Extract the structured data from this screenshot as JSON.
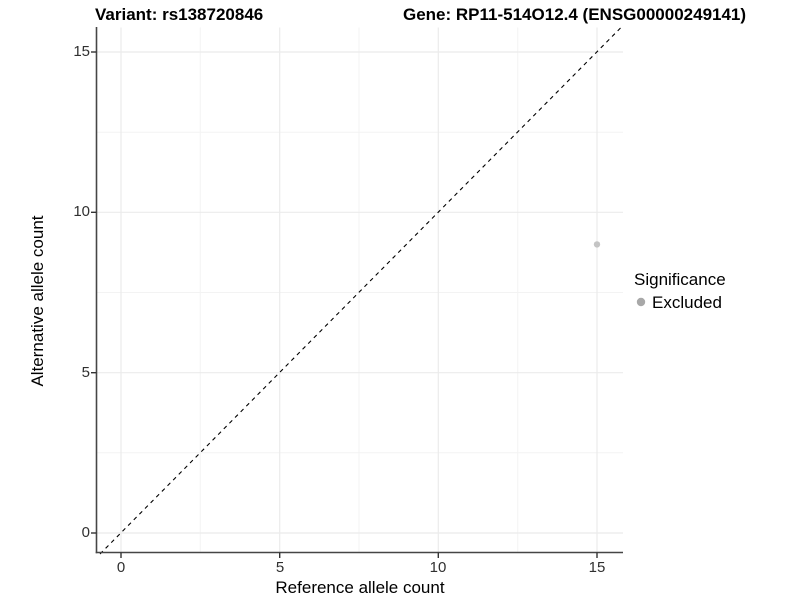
{
  "chart_data": {
    "type": "scatter",
    "title_left": "Variant: rs138720846",
    "title_right": "Gene: RP11-514O12.4 (ENSG00000249141)",
    "xlabel": "Reference allele count",
    "ylabel": "Alternative allele count",
    "x_ticks": [
      "0",
      "5",
      "10",
      "15"
    ],
    "y_ticks": [
      "0",
      "5",
      "10",
      "15"
    ],
    "x_tick_values": [
      0,
      5,
      10,
      15
    ],
    "y_tick_values": [
      0,
      5,
      10,
      15
    ],
    "xlim": [
      -0.77,
      15.76
    ],
    "ylim": [
      -0.61,
      15.76
    ],
    "grid": "major and minor, light gray, on white panel",
    "reference_line": {
      "equation": "y = x",
      "style": "dashed",
      "color": "#000000"
    },
    "series": [
      {
        "name": "Excluded",
        "color": "#c4c4c4",
        "points": [
          {
            "x": 15,
            "y": 9
          }
        ]
      }
    ],
    "legend": {
      "title": "Significance",
      "position": "right",
      "entries": [
        {
          "label": "Excluded",
          "color": "#a8a8a8"
        }
      ]
    }
  },
  "colors": {
    "background": "#ffffff",
    "grid_major": "#ebebeb",
    "grid_minor": "#f3f3f3",
    "axis_line": "#464646",
    "tick_mark": "#333333",
    "tick_text": "#303030",
    "title_text": "#000000",
    "diagonal_line": "#000000",
    "point": "#c4c4c4",
    "legend_point": "#a8a8a8"
  }
}
